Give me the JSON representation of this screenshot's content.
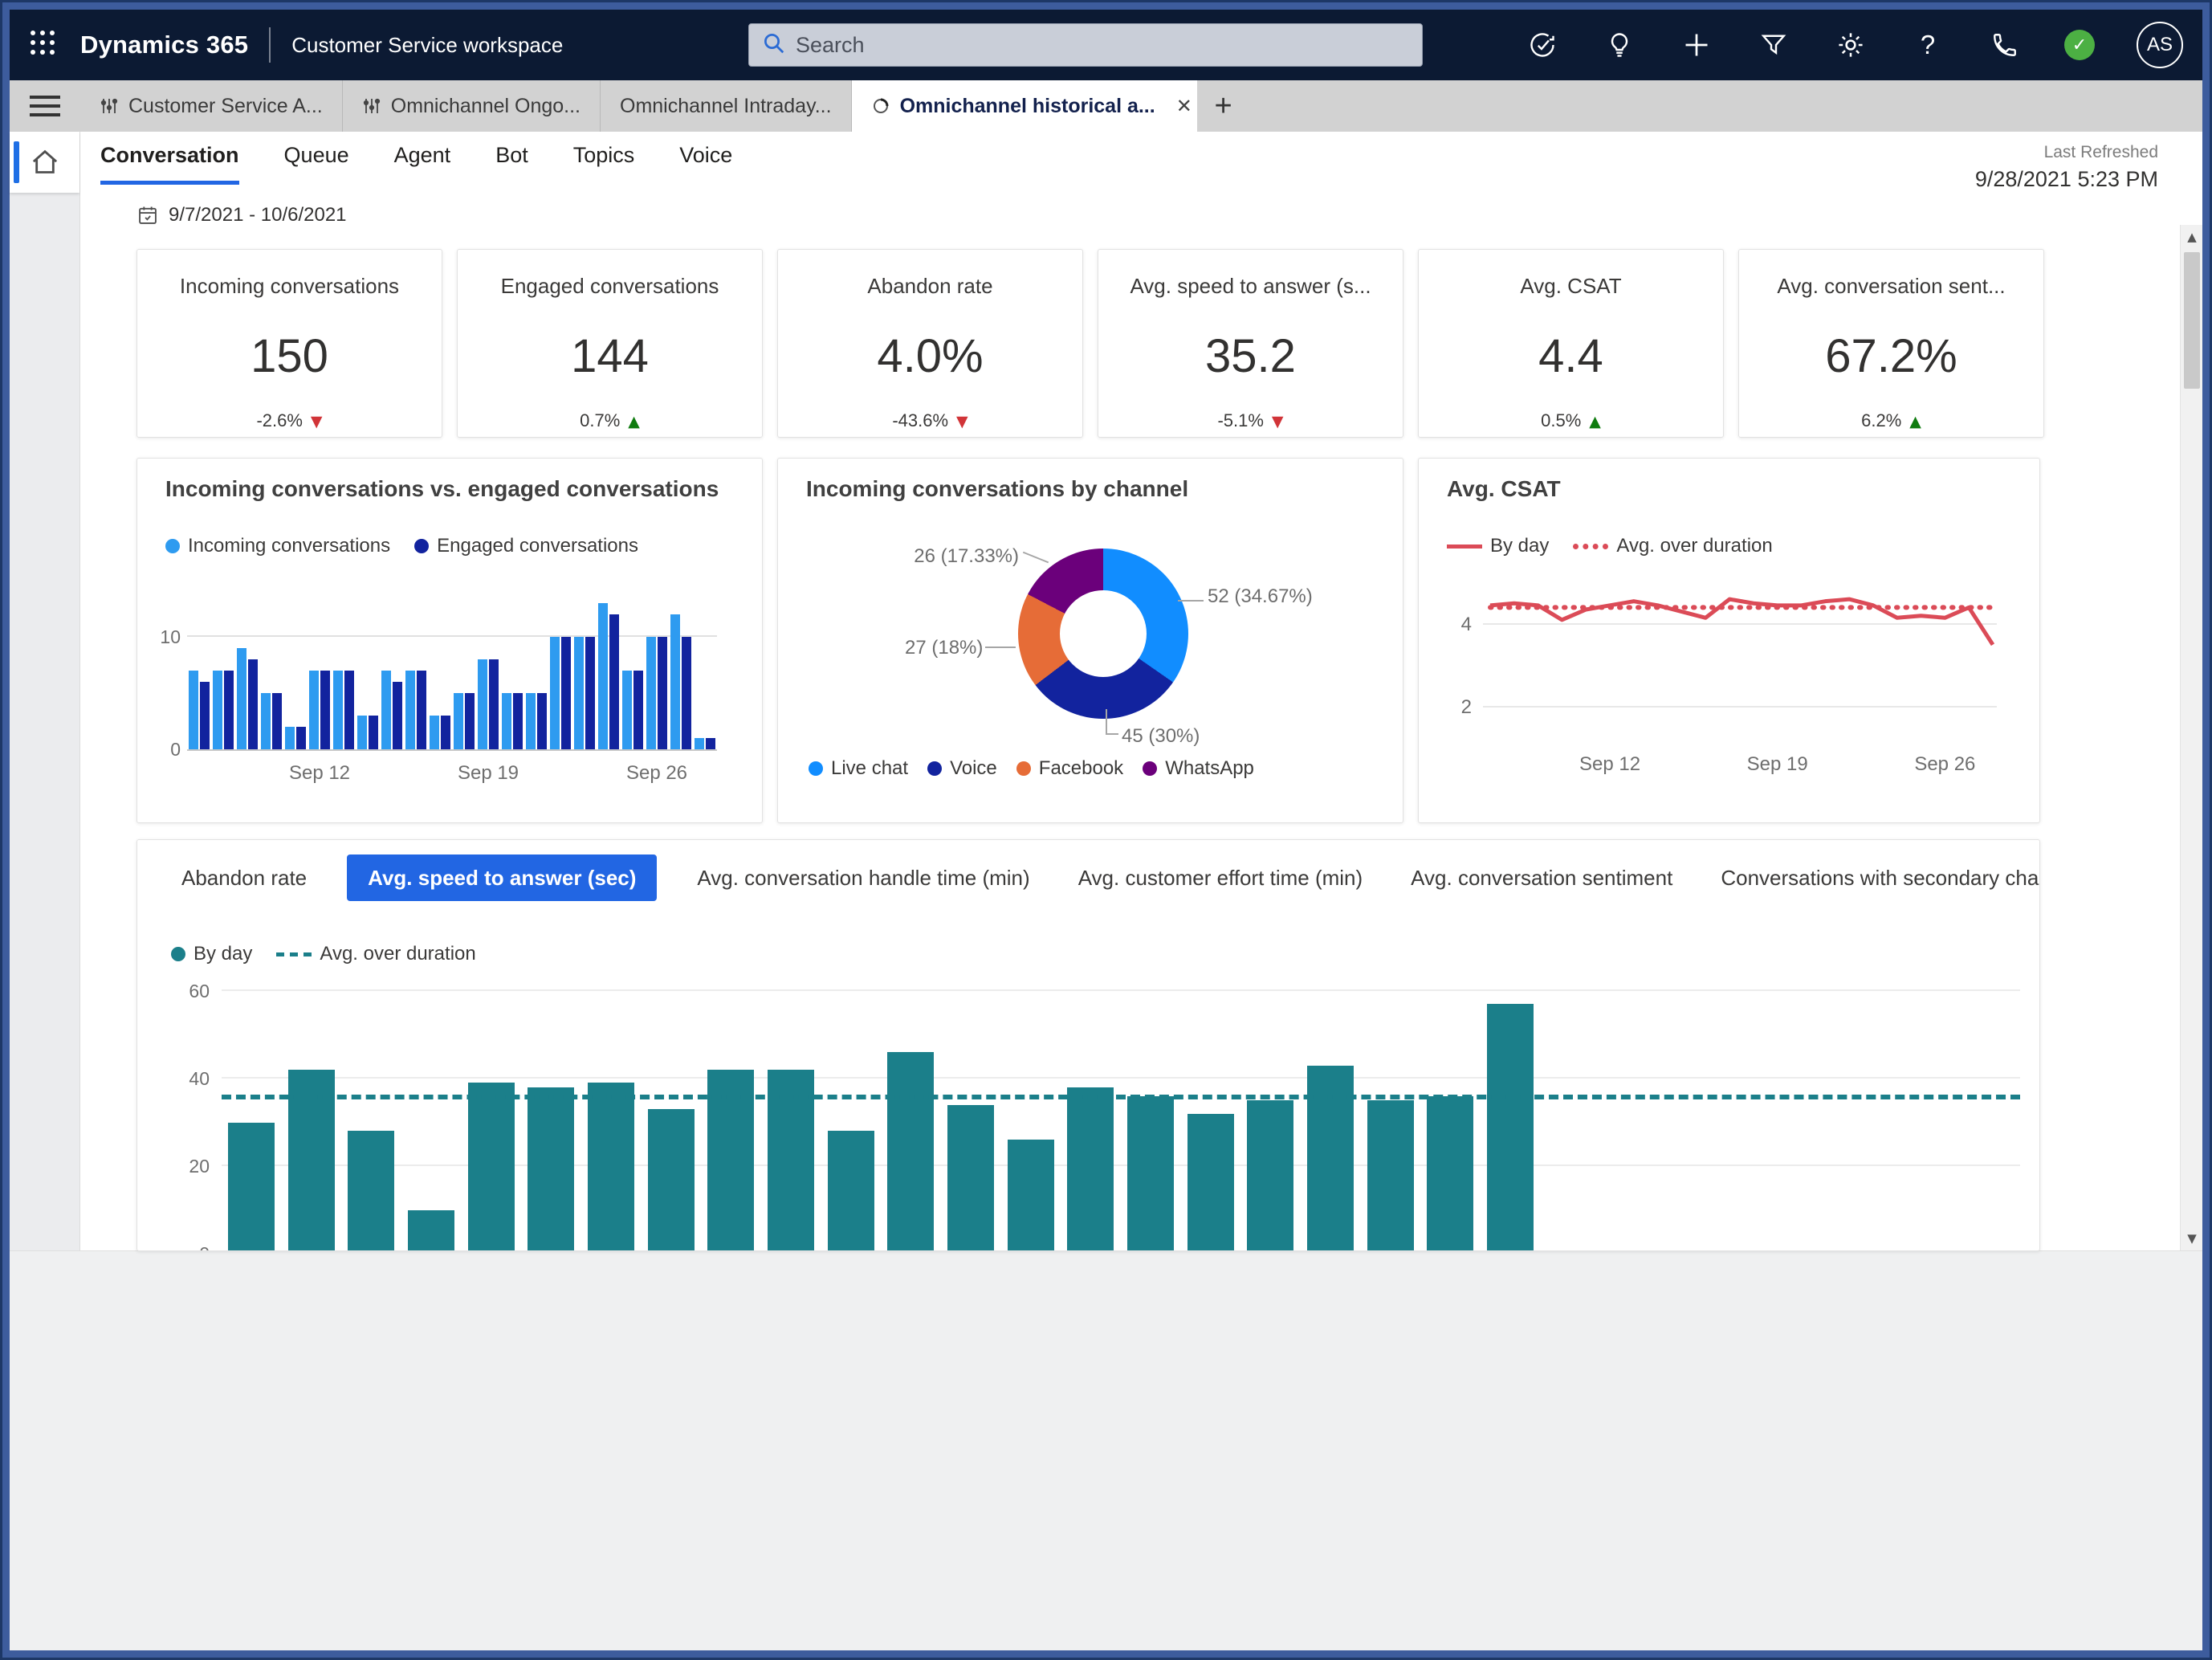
{
  "top_bar": {
    "app_title": "Dynamics 365",
    "workspace_title": "Customer Service workspace",
    "search_placeholder": "Search",
    "avatar_initials": "AS",
    "presence_check": "✓"
  },
  "tab_strip": {
    "tabs": [
      {
        "label": "Customer Service A...",
        "icon": "entity-icon",
        "active": false
      },
      {
        "label": "Omnichannel Ongo...",
        "icon": "entity-icon",
        "active": false
      },
      {
        "label": "Omnichannel Intraday...",
        "icon": null,
        "active": false
      },
      {
        "label": "Omnichannel historical a...",
        "icon": "donut-icon",
        "active": true,
        "close_label": "✕"
      }
    ],
    "new_tab_label": "+"
  },
  "subtabs": [
    {
      "label": "Conversation",
      "active": true
    },
    {
      "label": "Queue",
      "active": false
    },
    {
      "label": "Agent",
      "active": false
    },
    {
      "label": "Bot",
      "active": false
    },
    {
      "label": "Topics",
      "active": false
    },
    {
      "label": "Voice",
      "active": false
    }
  ],
  "toolbar": {
    "date_range": "9/7/2021 - 10/6/2021"
  },
  "last_refreshed": {
    "label": "Last Refreshed",
    "value": "9/28/2021 5:23 PM"
  },
  "kpi_cards": [
    {
      "title": "Incoming conversations",
      "value": "150",
      "delta": "-2.6%",
      "direction": "down"
    },
    {
      "title": "Engaged conversations",
      "value": "144",
      "delta": "0.7%",
      "direction": "up"
    },
    {
      "title": "Abandon rate",
      "value": "4.0%",
      "delta": "-43.6%",
      "direction": "down"
    },
    {
      "title": "Avg. speed to answer (s...",
      "value": "35.2",
      "delta": "-5.1%",
      "direction": "down"
    },
    {
      "title": "Avg. CSAT",
      "value": "4.4",
      "delta": "0.5%",
      "direction": "up"
    },
    {
      "title": "Avg. conversation sent...",
      "value": "67.2%",
      "delta": "6.2%",
      "direction": "up"
    }
  ],
  "metric_tabs": [
    {
      "label": "Abandon rate",
      "active": false
    },
    {
      "label": "Avg. speed to answer (sec)",
      "active": true
    },
    {
      "label": "Avg. conversation handle time (min)",
      "active": false
    },
    {
      "label": "Avg. customer effort time (min)",
      "active": false
    },
    {
      "label": "Avg. conversation sentiment",
      "active": false
    },
    {
      "label": "Conversations with secondary channel",
      "active": false
    }
  ],
  "colors": {
    "accent_blue": "#2266e3",
    "incoming_blue": "#2E9BF0",
    "engaged_navy": "#12239E",
    "csat_red": "#DB4B57",
    "teal": "#1B7F8A",
    "delta_red": "#d13438",
    "delta_green": "#107c10"
  },
  "chart_data": [
    {
      "id": "incoming_vs_engaged",
      "type": "bar",
      "title": "Incoming conversations vs. engaged conversations",
      "legend": [
        {
          "label": "Incoming conversations",
          "style": "dot",
          "color": "#2E9BF0"
        },
        {
          "label": "Engaged conversations",
          "style": "dot",
          "color": "#12239E"
        }
      ],
      "series": [
        {
          "name": "Incoming conversations",
          "color": "#2E9BF0",
          "values": [
            7,
            7,
            9,
            5,
            2,
            7,
            7,
            3,
            7,
            7,
            3,
            5,
            8,
            5,
            5,
            10,
            10,
            13,
            7,
            10,
            12,
            1
          ]
        },
        {
          "name": "Engaged conversations",
          "color": "#12239E",
          "values": [
            6,
            7,
            8,
            5,
            2,
            7,
            7,
            3,
            6,
            7,
            3,
            5,
            8,
            5,
            5,
            10,
            10,
            12,
            7,
            10,
            10,
            1
          ]
        }
      ],
      "x_ticks": [
        {
          "index": 5,
          "label": "Sep 12"
        },
        {
          "index": 12,
          "label": "Sep 19"
        },
        {
          "index": 19,
          "label": "Sep 26"
        }
      ],
      "yticks": [
        0,
        10
      ],
      "ylim": [
        0,
        13.5
      ],
      "grid": true,
      "legend_position": "top"
    },
    {
      "id": "incoming_by_channel",
      "type": "pie",
      "title": "Incoming conversations by channel",
      "donut": true,
      "segments": [
        {
          "label": "Live chat",
          "value": 52,
          "pct": 34.67,
          "callout": "52 (34.67%)",
          "color": "#118DFF"
        },
        {
          "label": "Voice",
          "value": 45,
          "pct": 30,
          "callout": "45 (30%)",
          "color": "#12239E"
        },
        {
          "label": "Facebook",
          "value": 27,
          "pct": 18,
          "callout": "27 (18%)",
          "color": "#E66C37"
        },
        {
          "label": "WhatsApp",
          "value": 26,
          "pct": 17.33,
          "callout": "26 (17.33%)",
          "color": "#6B007B"
        }
      ],
      "legend_position": "bottom"
    },
    {
      "id": "avg_csat",
      "type": "line",
      "title": "Avg. CSAT",
      "legend": [
        {
          "label": "By day",
          "style": "solid",
          "color": "#DB4B57"
        },
        {
          "label": "Avg. over duration",
          "style": "dotted",
          "color": "#DB4B57"
        }
      ],
      "values": [
        4.45,
        4.5,
        4.45,
        4.1,
        4.35,
        4.45,
        4.55,
        4.45,
        4.3,
        4.15,
        4.6,
        4.5,
        4.45,
        4.45,
        4.55,
        4.6,
        4.45,
        4.15,
        4.2,
        4.15,
        4.4,
        3.5
      ],
      "average": 4.4,
      "yticks": [
        2,
        4
      ],
      "ylim": [
        0.8,
        5.2
      ],
      "x_ticks": [
        {
          "index": 5,
          "label": "Sep 12"
        },
        {
          "index": 12,
          "label": "Sep 19"
        },
        {
          "index": 19,
          "label": "Sep 26"
        }
      ],
      "grid": true
    },
    {
      "id": "avg_speed_to_answer",
      "type": "bar",
      "title": "Avg. speed to answer (sec)",
      "legend": [
        {
          "label": "By day",
          "style": "dot",
          "color": "#1B7F8A"
        },
        {
          "label": "Avg. over duration",
          "style": "dashed",
          "color": "#1B7F8A"
        }
      ],
      "values": [
        30,
        42,
        28,
        10,
        39,
        38,
        39,
        33,
        42,
        42,
        28,
        46,
        34,
        26,
        38,
        36,
        32,
        35,
        43,
        35,
        36,
        57
      ],
      "average": 35.2,
      "color": "#1B7F8A",
      "yticks": [
        0,
        20,
        40,
        60
      ],
      "ylim": [
        0,
        60
      ],
      "x_slots": 30,
      "grid": true
    }
  ]
}
